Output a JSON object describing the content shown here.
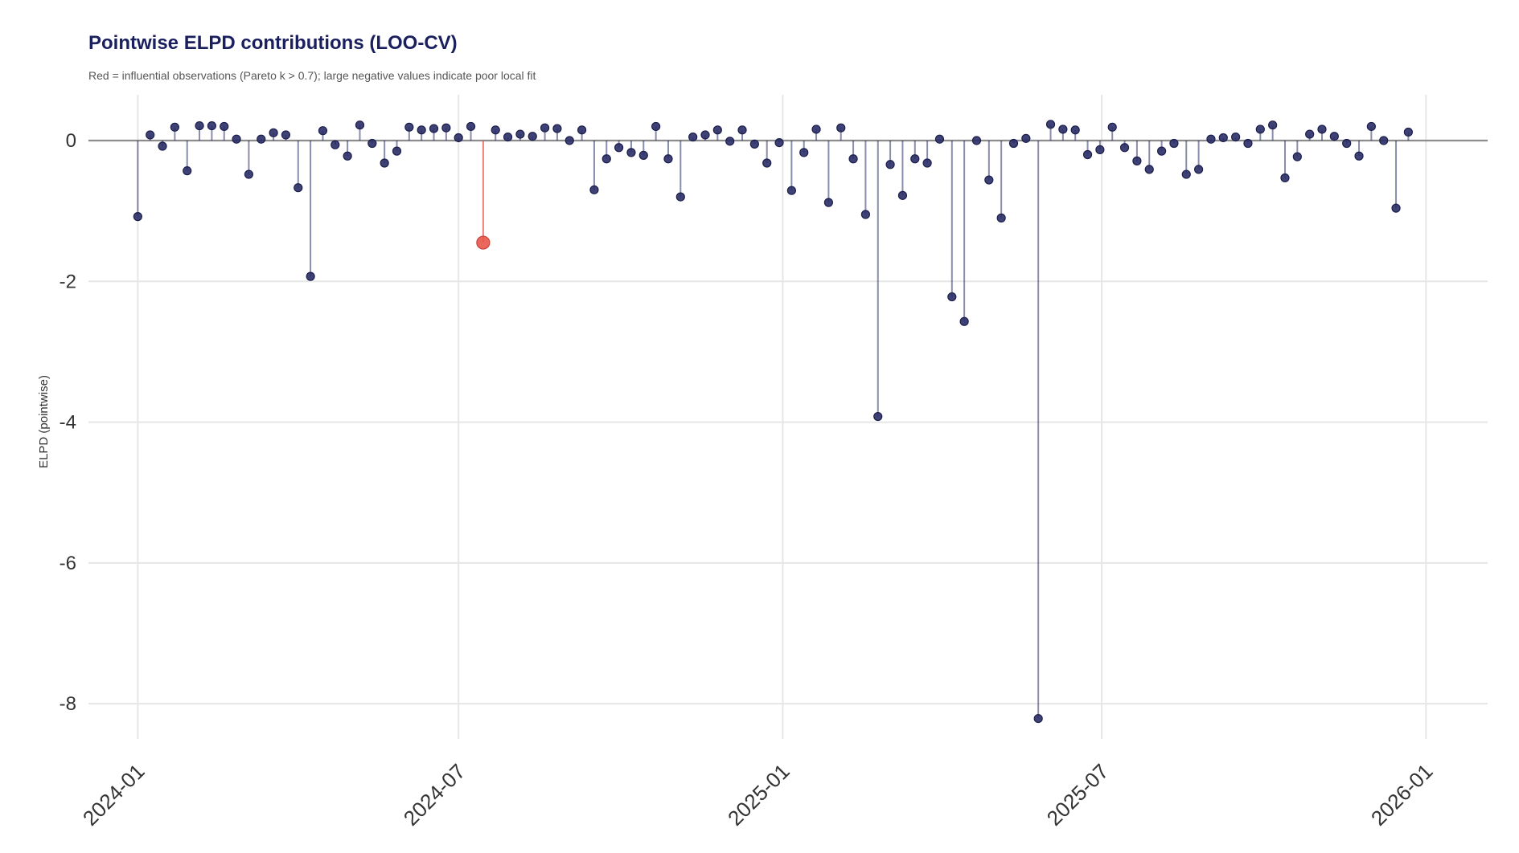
{
  "chart_data": {
    "type": "scatter",
    "style": "lollipop",
    "title": "Pointwise ELPD contributions (LOO-CV)",
    "subtitle": "Red = influential observations (Pareto k > 0.7); large negative values indicate poor local fit",
    "xlabel": "",
    "ylabel": "ELPD (pointwise)",
    "x_ticks": [
      "2024-01",
      "2024-07",
      "2025-01",
      "2025-07",
      "2026-01"
    ],
    "y_ticks": [
      0,
      -2,
      -4,
      -6,
      -8
    ],
    "ylim": [
      -8.5,
      0.65
    ],
    "xlim": [
      "2023-12-04",
      "2026-02-05"
    ],
    "grid": true,
    "colors": {
      "normal": "#2a2d66",
      "influential": "#e8574a",
      "baseline": "#8c8c8c",
      "grid": "#e6e6e6",
      "title": "#1a1f5e"
    },
    "series": [
      {
        "values": [
          {
            "x": "2024-01-01",
            "y": -1.08
          },
          {
            "x": "2024-01-08",
            "y": 0.08
          },
          {
            "x": "2024-01-15",
            "y": -0.08
          },
          {
            "x": "2024-01-22",
            "y": 0.19
          },
          {
            "x": "2024-01-29",
            "y": -0.43
          },
          {
            "x": "2024-02-05",
            "y": 0.21
          },
          {
            "x": "2024-02-12",
            "y": 0.21
          },
          {
            "x": "2024-02-19",
            "y": 0.2
          },
          {
            "x": "2024-02-26",
            "y": 0.02
          },
          {
            "x": "2024-03-04",
            "y": -0.48
          },
          {
            "x": "2024-03-11",
            "y": 0.02
          },
          {
            "x": "2024-03-18",
            "y": 0.11
          },
          {
            "x": "2024-03-25",
            "y": 0.08
          },
          {
            "x": "2024-04-01",
            "y": -0.67
          },
          {
            "x": "2024-04-08",
            "y": -1.93
          },
          {
            "x": "2024-04-15",
            "y": 0.14
          },
          {
            "x": "2024-04-22",
            "y": -0.06
          },
          {
            "x": "2024-04-29",
            "y": -0.22
          },
          {
            "x": "2024-05-06",
            "y": 0.22
          },
          {
            "x": "2024-05-13",
            "y": -0.04
          },
          {
            "x": "2024-05-20",
            "y": -0.32
          },
          {
            "x": "2024-05-27",
            "y": -0.15
          },
          {
            "x": "2024-06-03",
            "y": 0.19
          },
          {
            "x": "2024-06-10",
            "y": 0.15
          },
          {
            "x": "2024-06-17",
            "y": 0.17
          },
          {
            "x": "2024-06-24",
            "y": 0.18
          },
          {
            "x": "2024-07-01",
            "y": 0.04
          },
          {
            "x": "2024-07-08",
            "y": 0.2
          },
          {
            "x": "2024-07-15",
            "y": -1.45,
            "influential": true
          },
          {
            "x": "2024-07-22",
            "y": 0.15
          },
          {
            "x": "2024-07-29",
            "y": 0.05
          },
          {
            "x": "2024-08-05",
            "y": 0.09
          },
          {
            "x": "2024-08-12",
            "y": 0.06
          },
          {
            "x": "2024-08-19",
            "y": 0.18
          },
          {
            "x": "2024-08-26",
            "y": 0.17
          },
          {
            "x": "2024-09-02",
            "y": 0.0
          },
          {
            "x": "2024-09-09",
            "y": 0.15
          },
          {
            "x": "2024-09-16",
            "y": -0.7
          },
          {
            "x": "2024-09-23",
            "y": -0.26
          },
          {
            "x": "2024-09-30",
            "y": -0.1
          },
          {
            "x": "2024-10-07",
            "y": -0.17
          },
          {
            "x": "2024-10-14",
            "y": -0.21
          },
          {
            "x": "2024-10-21",
            "y": 0.2
          },
          {
            "x": "2024-10-28",
            "y": -0.26
          },
          {
            "x": "2024-11-04",
            "y": -0.8
          },
          {
            "x": "2024-11-11",
            "y": 0.05
          },
          {
            "x": "2024-11-18",
            "y": 0.08
          },
          {
            "x": "2024-11-25",
            "y": 0.15
          },
          {
            "x": "2024-12-02",
            "y": -0.01
          },
          {
            "x": "2024-12-09",
            "y": 0.15
          },
          {
            "x": "2024-12-16",
            "y": -0.05
          },
          {
            "x": "2024-12-23",
            "y": -0.32
          },
          {
            "x": "2024-12-30",
            "y": -0.03
          },
          {
            "x": "2025-01-06",
            "y": -0.71
          },
          {
            "x": "2025-01-13",
            "y": -0.17
          },
          {
            "x": "2025-01-20",
            "y": 0.16
          },
          {
            "x": "2025-01-27",
            "y": -0.88
          },
          {
            "x": "2025-02-03",
            "y": 0.18
          },
          {
            "x": "2025-02-10",
            "y": -0.26
          },
          {
            "x": "2025-02-17",
            "y": -1.05
          },
          {
            "x": "2025-02-24",
            "y": -3.92
          },
          {
            "x": "2025-03-03",
            "y": -0.34
          },
          {
            "x": "2025-03-10",
            "y": -0.78
          },
          {
            "x": "2025-03-17",
            "y": -0.26
          },
          {
            "x": "2025-03-24",
            "y": -0.32
          },
          {
            "x": "2025-03-31",
            "y": 0.02
          },
          {
            "x": "2025-04-07",
            "y": -2.22
          },
          {
            "x": "2025-04-14",
            "y": -2.57
          },
          {
            "x": "2025-04-21",
            "y": 0.0
          },
          {
            "x": "2025-04-28",
            "y": -0.56
          },
          {
            "x": "2025-05-05",
            "y": -1.1
          },
          {
            "x": "2025-05-12",
            "y": -0.04
          },
          {
            "x": "2025-05-19",
            "y": 0.03
          },
          {
            "x": "2025-05-26",
            "y": -8.21
          },
          {
            "x": "2025-06-02",
            "y": 0.23
          },
          {
            "x": "2025-06-09",
            "y": 0.16
          },
          {
            "x": "2025-06-16",
            "y": 0.15
          },
          {
            "x": "2025-06-23",
            "y": -0.2
          },
          {
            "x": "2025-06-30",
            "y": -0.13
          },
          {
            "x": "2025-07-07",
            "y": 0.19
          },
          {
            "x": "2025-07-14",
            "y": -0.1
          },
          {
            "x": "2025-07-21",
            "y": -0.29
          },
          {
            "x": "2025-07-28",
            "y": -0.41
          },
          {
            "x": "2025-08-04",
            "y": -0.15
          },
          {
            "x": "2025-08-11",
            "y": -0.04
          },
          {
            "x": "2025-08-18",
            "y": -0.48
          },
          {
            "x": "2025-08-25",
            "y": -0.41
          },
          {
            "x": "2025-09-01",
            "y": 0.02
          },
          {
            "x": "2025-09-08",
            "y": 0.04
          },
          {
            "x": "2025-09-15",
            "y": 0.05
          },
          {
            "x": "2025-09-22",
            "y": -0.04
          },
          {
            "x": "2025-09-29",
            "y": 0.16
          },
          {
            "x": "2025-10-06",
            "y": 0.22
          },
          {
            "x": "2025-10-13",
            "y": -0.53
          },
          {
            "x": "2025-10-20",
            "y": -0.23
          },
          {
            "x": "2025-10-27",
            "y": 0.09
          },
          {
            "x": "2025-11-03",
            "y": 0.16
          },
          {
            "x": "2025-11-10",
            "y": 0.06
          },
          {
            "x": "2025-11-17",
            "y": -0.04
          },
          {
            "x": "2025-11-24",
            "y": -0.22
          },
          {
            "x": "2025-12-01",
            "y": 0.2
          },
          {
            "x": "2025-12-08",
            "y": 0.0
          },
          {
            "x": "2025-12-15",
            "y": -0.96
          },
          {
            "x": "2025-12-22",
            "y": 0.12
          }
        ]
      }
    ]
  }
}
